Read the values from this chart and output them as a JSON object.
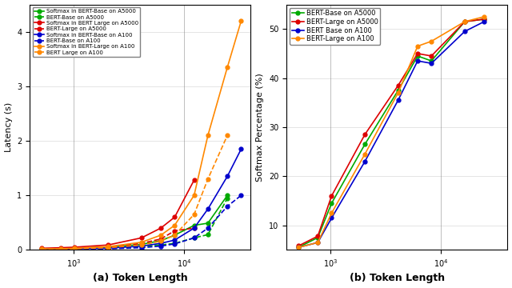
{
  "token_lengths": [
    512,
    768,
    1024,
    2048,
    4096,
    6144,
    8192,
    12288,
    16384,
    24576,
    32768
  ],
  "latency": {
    "softmax_bert_base_a5000": [
      0.02,
      0.02,
      0.03,
      0.05,
      0.1,
      0.17,
      0.27,
      0.45,
      0.49,
      1.0,
      null
    ],
    "bert_base_a5000": [
      0.01,
      0.01,
      0.02,
      0.03,
      0.06,
      0.09,
      0.12,
      0.22,
      0.28,
      0.95,
      null
    ],
    "softmax_bert_large_a5000": [
      0.03,
      0.04,
      0.05,
      0.09,
      0.22,
      0.4,
      0.6,
      1.28,
      null,
      null,
      null
    ],
    "bert_large_a5000": [
      0.01,
      0.02,
      0.03,
      0.05,
      0.12,
      0.2,
      0.35,
      0.4,
      null,
      null,
      null
    ],
    "softmax_bert_base_a100": [
      0.01,
      0.01,
      0.02,
      0.03,
      0.07,
      0.12,
      0.18,
      0.4,
      0.75,
      1.35,
      1.85
    ],
    "bert_base_a100": [
      0.01,
      0.01,
      0.01,
      0.02,
      0.04,
      0.07,
      0.11,
      0.22,
      0.4,
      0.8,
      1.0
    ],
    "softmax_bert_large_a100": [
      0.02,
      0.02,
      0.03,
      0.06,
      0.14,
      0.27,
      0.45,
      1.0,
      2.1,
      3.35,
      4.2
    ],
    "bert_large_a100": [
      0.01,
      0.01,
      0.02,
      0.04,
      0.09,
      0.16,
      0.27,
      0.65,
      1.3,
      2.1,
      null
    ]
  },
  "softmax_pct": {
    "bert_base_a5000": [
      5.5,
      7.5,
      14.5,
      26.5,
      37.5,
      44.5,
      43.5,
      51.5,
      52.0
    ],
    "bert_large_a5000": [
      5.8,
      7.8,
      16.0,
      28.5,
      38.5,
      45.0,
      44.5,
      51.5,
      52.0
    ],
    "bert_base_a100": [
      5.5,
      6.5,
      11.5,
      23.0,
      35.5,
      43.5,
      43.0,
      49.5,
      51.5
    ],
    "bert_large_a100": [
      5.5,
      6.5,
      12.5,
      24.5,
      37.0,
      46.5,
      47.5,
      51.5,
      52.5
    ]
  },
  "softmax_pct_lengths": [
    512,
    768,
    1024,
    2048,
    4096,
    6144,
    8192,
    16384,
    24576
  ],
  "colors": {
    "green": "#00aa00",
    "red": "#dd0000",
    "blue": "#0000cc",
    "orange": "#ff8800"
  },
  "xlim": [
    400,
    40000
  ],
  "ylim_latency": [
    0,
    4.5
  ],
  "ylim_pct": [
    5,
    55
  ],
  "xlabel_a": "(a) Token Length",
  "xlabel_b": "(b) Token Length",
  "ylabel_a": "Latency (s)",
  "ylabel_b": "Softmax Percentage (%)",
  "legend_a": [
    "Softmax in BERT-Base on A5000",
    "BERT-Base on A5000",
    "Softmax in BERT Large on A5000",
    "BERT-Large on A5000",
    "Softmax in BERT-Base on A100",
    "BERT-Base on A100",
    "Softmax in BERT-Large on A100",
    "BERT Large on A100"
  ],
  "legend_b": [
    "BERT-Base on A5000",
    "BERT-Large on A5000",
    "BERT Base on A100",
    "BERT-Large on A100"
  ]
}
